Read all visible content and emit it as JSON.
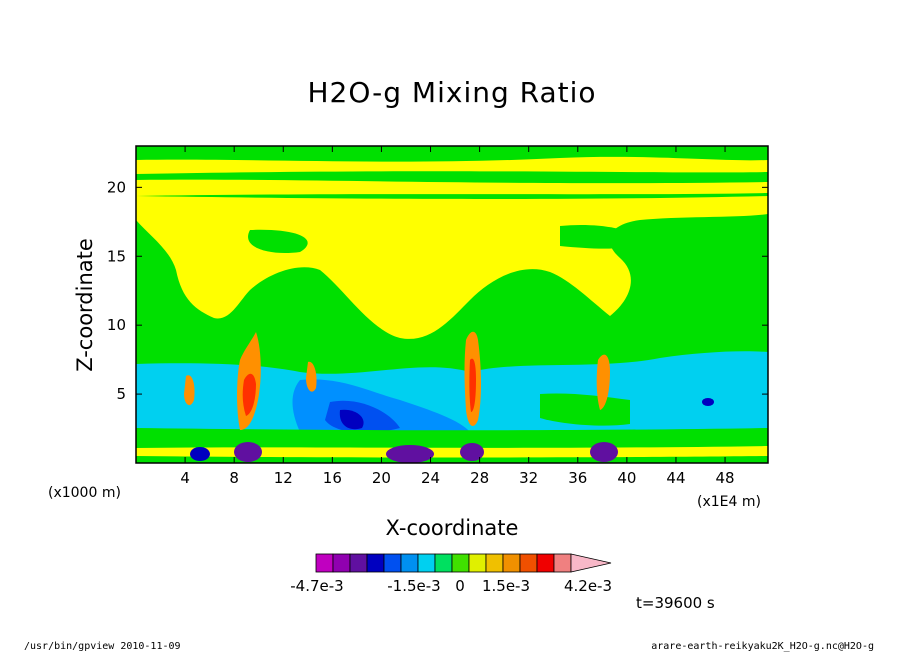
{
  "chart_data": {
    "type": "heatmap",
    "title": "H2O-g Mixing Ratio",
    "xlabel": "X-coordinate",
    "ylabel": "Z-coordinate",
    "x_unit_left": "(x1000 m)",
    "x_unit_right": "(x1E4 m)",
    "x_ticks": [
      "4",
      "8",
      "12",
      "16",
      "20",
      "24",
      "28",
      "32",
      "36",
      "40",
      "44",
      "48"
    ],
    "y_ticks": [
      "5",
      "10",
      "15",
      "20"
    ],
    "xlim": [
      0,
      51.5
    ],
    "ylim": [
      0,
      23
    ],
    "colorbar": {
      "colors": [
        "#c000c0",
        "#9000b0",
        "#6010a0",
        "#0000c0",
        "#0050f0",
        "#0090f0",
        "#00d0f0",
        "#00e060",
        "#40e000",
        "#e0f000",
        "#f0c000",
        "#f09000",
        "#f05000",
        "#f00000",
        "#f08080",
        "#f8b8c8"
      ],
      "labels": [
        "-4.7e-3",
        "-1.5e-3",
        "0",
        "1.5e-3",
        "4.2e-3"
      ]
    },
    "time_label": "t=39600 s"
  },
  "footer": {
    "left": "/usr/bin/gpview   2010-11-09",
    "right": "arare-earth-reikyaku2K_H2O-g.nc@H2O-g"
  }
}
